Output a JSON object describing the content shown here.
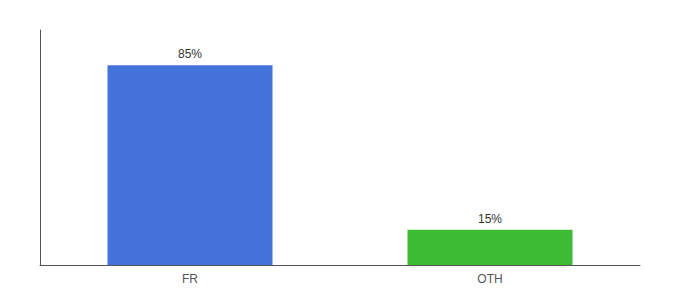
{
  "chart_data": {
    "type": "bar",
    "categories": [
      "FR",
      "OTH"
    ],
    "values": [
      85,
      15
    ],
    "value_labels": [
      "85%",
      "15%"
    ],
    "colors": [
      "#4472db",
      "#3dbb35"
    ],
    "ylim": [
      0,
      100
    ],
    "grid": false,
    "data_labels": true,
    "tick_labels": "x"
  }
}
